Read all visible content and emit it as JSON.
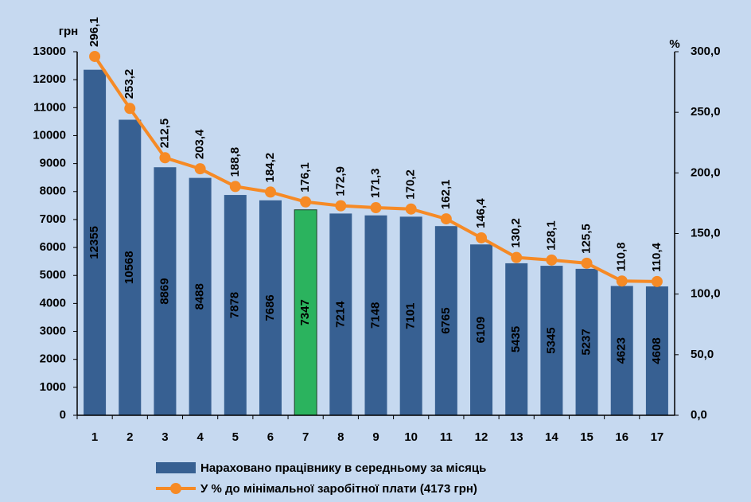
{
  "chart_data": {
    "type": "bar-line",
    "y_unit": "грн",
    "y2_unit": "%",
    "categories": [
      "1",
      "2",
      "3",
      "4",
      "5",
      "6",
      "7",
      "8",
      "9",
      "10",
      "11",
      "12",
      "13",
      "14",
      "15",
      "16",
      "17"
    ],
    "series": [
      {
        "name": "Нараховано працівнику в середньому за місяць",
        "type": "bar",
        "color": "#376092",
        "colors": [
          "#376092",
          "#376092",
          "#376092",
          "#376092",
          "#376092",
          "#376092",
          "#2bb35e",
          "#376092",
          "#376092",
          "#376092",
          "#376092",
          "#376092",
          "#376092",
          "#376092",
          "#376092",
          "#376092",
          "#376092"
        ],
        "values": [
          12355,
          10568,
          8869,
          8488,
          7878,
          7686,
          7347,
          7214,
          7148,
          7101,
          6765,
          6109,
          5435,
          5345,
          5237,
          4623,
          4608
        ]
      },
      {
        "name": "У % до мінімальної заробітної плати (4173 грн)",
        "type": "line",
        "axis": "y2",
        "color": "#f68a25",
        "values": [
          296.1,
          253.2,
          212.5,
          203.4,
          188.8,
          184.2,
          176.1,
          172.9,
          171.3,
          170.2,
          162.1,
          146.4,
          130.2,
          128.1,
          125.5,
          110.8,
          110.4
        ],
        "value_labels": [
          "296,1",
          "253,2",
          "212,5",
          "203,4",
          "188,8",
          "184,2",
          "176,1",
          "172,9",
          "171,3",
          "170,2",
          "162,1",
          "146,4",
          "130,2",
          "128,1",
          "125,5",
          "110,8",
          "110,4"
        ]
      }
    ],
    "ylim": [
      0,
      13000
    ],
    "yticks": [
      0,
      1000,
      2000,
      3000,
      4000,
      5000,
      6000,
      7000,
      8000,
      9000,
      10000,
      11000,
      12000,
      13000
    ],
    "y2lim": [
      0,
      300
    ],
    "y2ticks": [
      {
        "value": 0,
        "label": "0,0"
      },
      {
        "value": 50,
        "label": "50,0"
      },
      {
        "value": 100,
        "label": "100,0"
      },
      {
        "value": 150,
        "label": "150,0"
      },
      {
        "value": 200,
        "label": "200,0"
      },
      {
        "value": 250,
        "label": "250,0"
      },
      {
        "value": 300,
        "label": "300,0"
      }
    ],
    "legend": "bottom"
  }
}
